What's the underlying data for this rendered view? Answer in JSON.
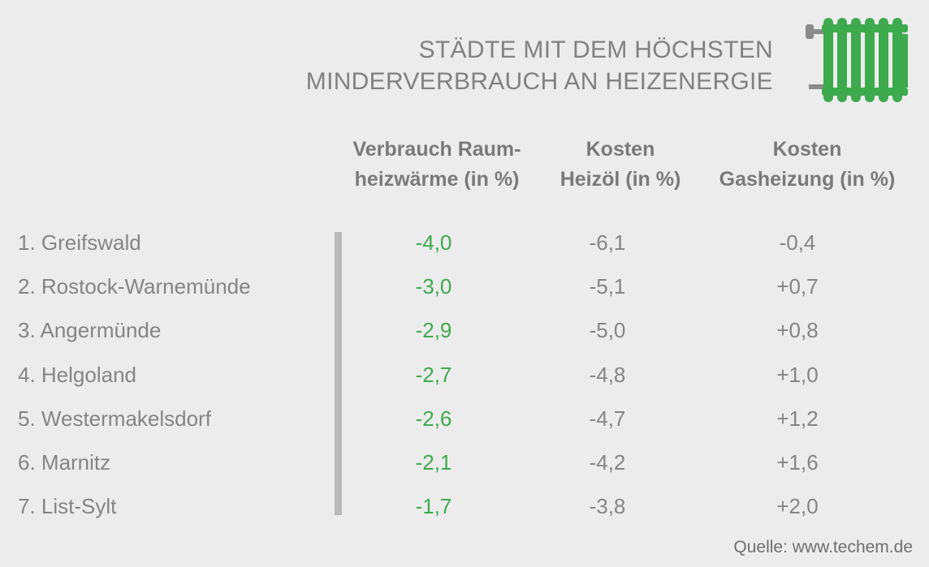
{
  "title_line1": "STÄDTE MIT DEM HÖCHSTEN",
  "title_line2": "MINDERVERBRAUCH AN HEIZENERGIE",
  "icon": "radiator-icon",
  "colors": {
    "background": "#ececec",
    "accent_green": "#3daa4d",
    "text_gray": "#858585",
    "divider": "#b9b9b9"
  },
  "chart_data": {
    "type": "table",
    "columns": [
      {
        "line1": "Verbrauch Raum-",
        "line2": "heizwärme (in %)"
      },
      {
        "line1": "Kosten",
        "line2": "Heizöl (in %)"
      },
      {
        "line1": "Kosten",
        "line2": "Gasheizung (in %)"
      }
    ],
    "rows": [
      {
        "city": "1. Greifswald",
        "values": [
          "-4,0",
          "-6,1",
          "-0,4"
        ]
      },
      {
        "city": "2. Rostock-Warnemünde",
        "values": [
          "-3,0",
          "-5,1",
          "+0,7"
        ]
      },
      {
        "city": "3. Angermünde",
        "values": [
          "-2,9",
          "-5,0",
          "+0,8"
        ]
      },
      {
        "city": "4. Helgoland",
        "values": [
          "-2,7",
          "-4,8",
          "+1,0"
        ]
      },
      {
        "city": "5. Westermakelsdorf",
        "values": [
          "-2,6",
          "-4,7",
          "+1,2"
        ]
      },
      {
        "city": "6. Marnitz",
        "values": [
          "-2,1",
          "-4,2",
          "+1,6"
        ]
      },
      {
        "city": "7. List-Sylt",
        "values": [
          "-1,7",
          "-3,8",
          "+2,0"
        ]
      }
    ]
  },
  "source": "Quelle: www.techem.de"
}
